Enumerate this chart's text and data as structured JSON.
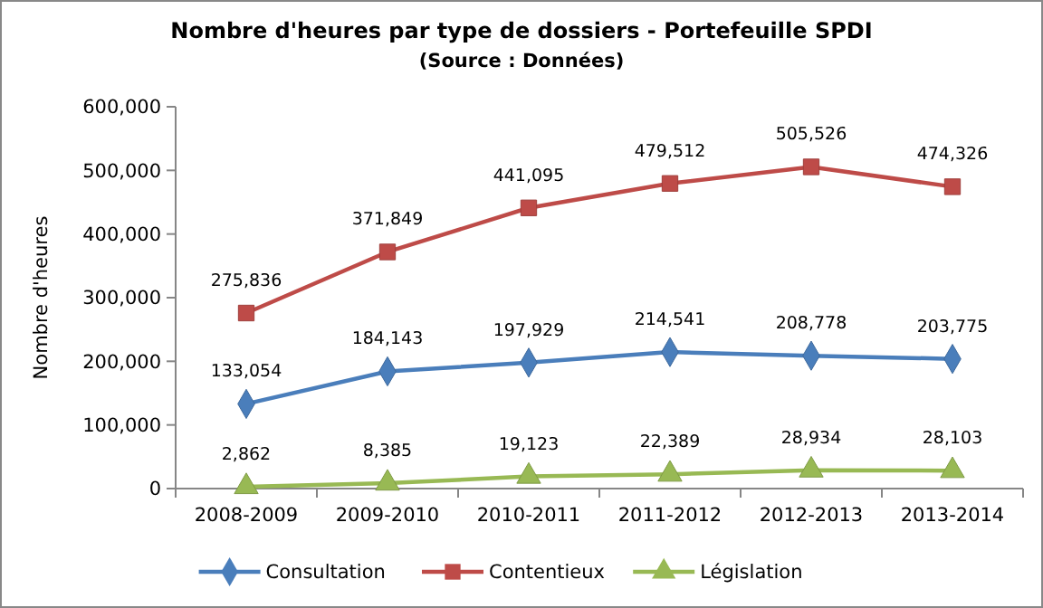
{
  "chart_data": {
    "type": "line",
    "title": "Nombre d'heures par type de dossiers - Portefeuille SPDI",
    "subtitle": "(Source : Données)",
    "ylabel": "Nombre d'heures",
    "categories": [
      "2008-2009",
      "2009-2010",
      "2010-2011",
      "2011-2012",
      "2012-2013",
      "2013-2014"
    ],
    "series": [
      {
        "name": "Consultation",
        "color": "#4a7ebb",
        "marker": "diamond",
        "values": [
          133054,
          184143,
          197929,
          214541,
          208778,
          203775
        ],
        "value_labels": [
          "133,054",
          "184,143",
          "197,929",
          "214,541",
          "208,778",
          "203,775"
        ]
      },
      {
        "name": "Contentieux",
        "color": "#be4b48",
        "marker": "square",
        "values": [
          275836,
          371849,
          441095,
          479512,
          505526,
          474326
        ],
        "value_labels": [
          "275,836",
          "371,849",
          "441,095",
          "479,512",
          "505,526",
          "474,326"
        ]
      },
      {
        "name": "Législation",
        "color": "#98b954",
        "marker": "triangle",
        "values": [
          2862,
          8385,
          19123,
          22389,
          28934,
          28103
        ],
        "value_labels": [
          "2,862",
          "8,385",
          "19,123",
          "22,389",
          "28,934",
          "28,103"
        ]
      }
    ],
    "ylim": [
      0,
      600000
    ],
    "yticks": [
      0,
      {
        "value": 100000,
        "label": "100,000"
      },
      {
        "value": 200000,
        "label": "200,000"
      },
      {
        "value": 300000,
        "label": "300,000"
      },
      {
        "value": 400000,
        "label": "400,000"
      },
      {
        "value": 500000,
        "label": "500,000"
      },
      {
        "value": 600000,
        "label": "600,000"
      }
    ],
    "grid": false,
    "legend": "bottom",
    "line_style": "solid"
  }
}
